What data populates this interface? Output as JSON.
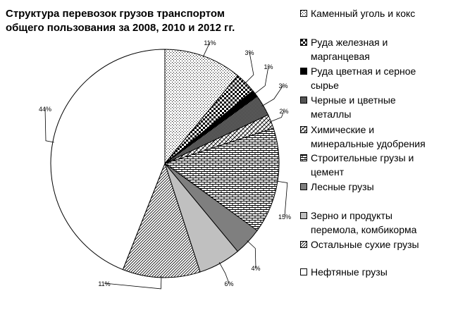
{
  "chart_data": {
    "type": "pie",
    "title": [
      "Структура перевозок грузов транспортом",
      "общего пользования за 2008, 2010 и 2012 гг."
    ],
    "slices": [
      {
        "label": "Каменный уголь и кокс",
        "label_lines": [
          "Каменный уголь и кокс"
        ],
        "value": 11,
        "value_label": "11%",
        "pattern": "dots",
        "color": "#000000"
      },
      {
        "label": "Руда железная и марганцевая",
        "label_lines": [
          "Руда железная и",
          "марганцевая"
        ],
        "value": 3,
        "value_label": "3%",
        "pattern": "checker",
        "color": "#000000"
      },
      {
        "label": "Руда цветная и серное сырье",
        "label_lines": [
          "Руда цветная и серное",
          "сырье"
        ],
        "value": 1,
        "value_label": "1%",
        "pattern": "solid",
        "color": "#000000"
      },
      {
        "label": "Черные и цветные металлы",
        "label_lines": [
          "Черные и цветные",
          "металлы"
        ],
        "value": 3,
        "value_label": "3%",
        "pattern": "dense",
        "color": "#555555"
      },
      {
        "label": "Химические и минеральные удобрения",
        "label_lines": [
          "Химические и",
          "минеральные удобрения"
        ],
        "value": 2,
        "value_label": "2%",
        "pattern": "zigzag",
        "color": "#000000"
      },
      {
        "label": "Строительные грузы и цемент",
        "label_lines": [
          "Строительные грузы и",
          "цемент"
        ],
        "value": 15,
        "value_label": "15%",
        "pattern": "brick",
        "color": "#000000"
      },
      {
        "label": "Лесные грузы",
        "label_lines": [
          "Лесные грузы"
        ],
        "value": 4,
        "value_label": "4%",
        "pattern": "solid",
        "color": "#7f7f7f"
      },
      {
        "label": "Зерно и продукты перемола, комбикорма",
        "label_lines": [
          "Зерно и продукты",
          "перемола, комбикорма"
        ],
        "value": 6,
        "value_label": "6%",
        "pattern": "solid",
        "color": "#c0c0c0"
      },
      {
        "label": "Остальные сухие грузы",
        "label_lines": [
          "Остальные сухие грузы"
        ],
        "value": 11,
        "value_label": "11%",
        "pattern": "hatch",
        "color": "#000000"
      },
      {
        "label": "Нефтяные грузы",
        "label_lines": [
          "Нефтяные грузы"
        ],
        "value": 44,
        "value_label": "44%",
        "pattern": "none",
        "color": "#ffffff"
      }
    ]
  }
}
